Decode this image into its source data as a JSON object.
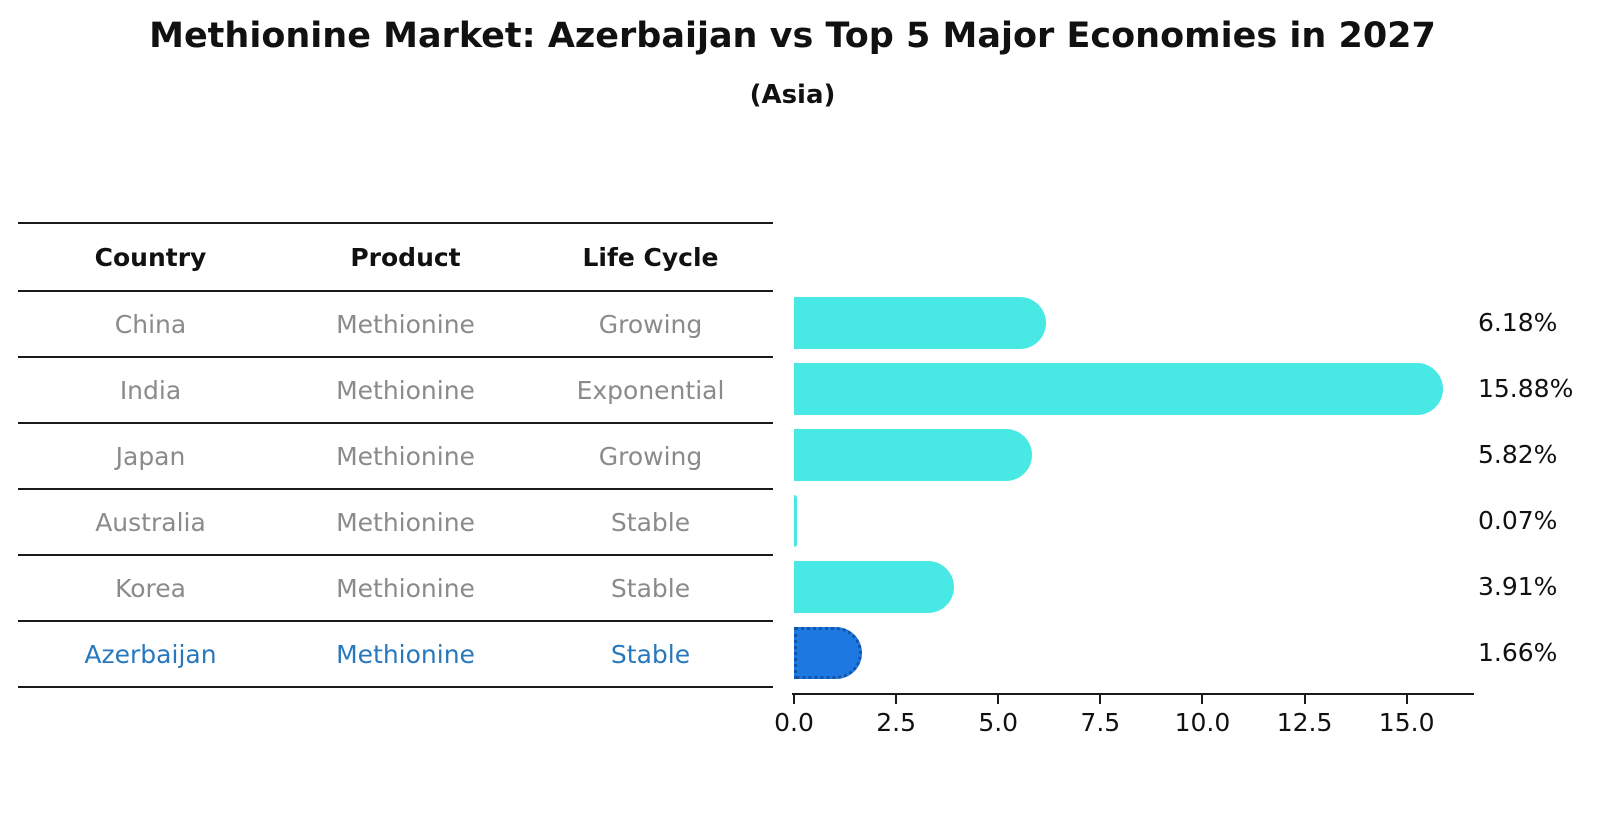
{
  "title": "Methionine Market: Azerbaijan vs Top 5 Major Economies in 2027",
  "subtitle": "(Asia)",
  "table": {
    "headers": [
      "Country",
      "Product",
      "Life Cycle"
    ],
    "rows": [
      {
        "country": "China",
        "product": "Methionine",
        "life_cycle": "Growing"
      },
      {
        "country": "India",
        "product": "Methionine",
        "life_cycle": "Exponential"
      },
      {
        "country": "Japan",
        "product": "Methionine",
        "life_cycle": "Growing"
      },
      {
        "country": "Australia",
        "product": "Methionine",
        "life_cycle": "Stable"
      },
      {
        "country": "Korea",
        "product": "Methionine",
        "life_cycle": "Stable"
      },
      {
        "country": "Azerbaijan",
        "product": "Methionine",
        "life_cycle": "Stable"
      }
    ],
    "highlight_row_index": 5
  },
  "chart_data": {
    "type": "bar",
    "orientation": "horizontal",
    "title": "Methionine Market: Azerbaijan vs Top 5 Major Economies in 2027",
    "subtitle": "(Asia)",
    "categories": [
      "China",
      "India",
      "Japan",
      "Australia",
      "Korea",
      "Azerbaijan"
    ],
    "values": [
      6.18,
      15.88,
      5.82,
      0.07,
      3.91,
      1.66
    ],
    "value_labels": [
      "6.18%",
      "15.88%",
      "5.82%",
      "0.07%",
      "3.91%",
      "1.66%"
    ],
    "x_tick_labels": [
      "0.0",
      "2.5",
      "5.0",
      "7.5",
      "10.0",
      "12.5",
      "15.0"
    ],
    "x_tick_values": [
      0,
      2.5,
      5,
      7.5,
      10,
      12.5,
      15
    ],
    "xlim": [
      0,
      16.6
    ],
    "grid": false,
    "legend_position": "none",
    "bar_color": "#48E8E4",
    "highlight_index": 5,
    "highlight_bar_color": "#1E78E1",
    "highlight_bar_border_color": "#1254A8"
  },
  "colors": {
    "text": "#111111",
    "row_text": "#8B8B8B",
    "highlight_text": "#2878BE",
    "axis": "#1A1A1A"
  }
}
